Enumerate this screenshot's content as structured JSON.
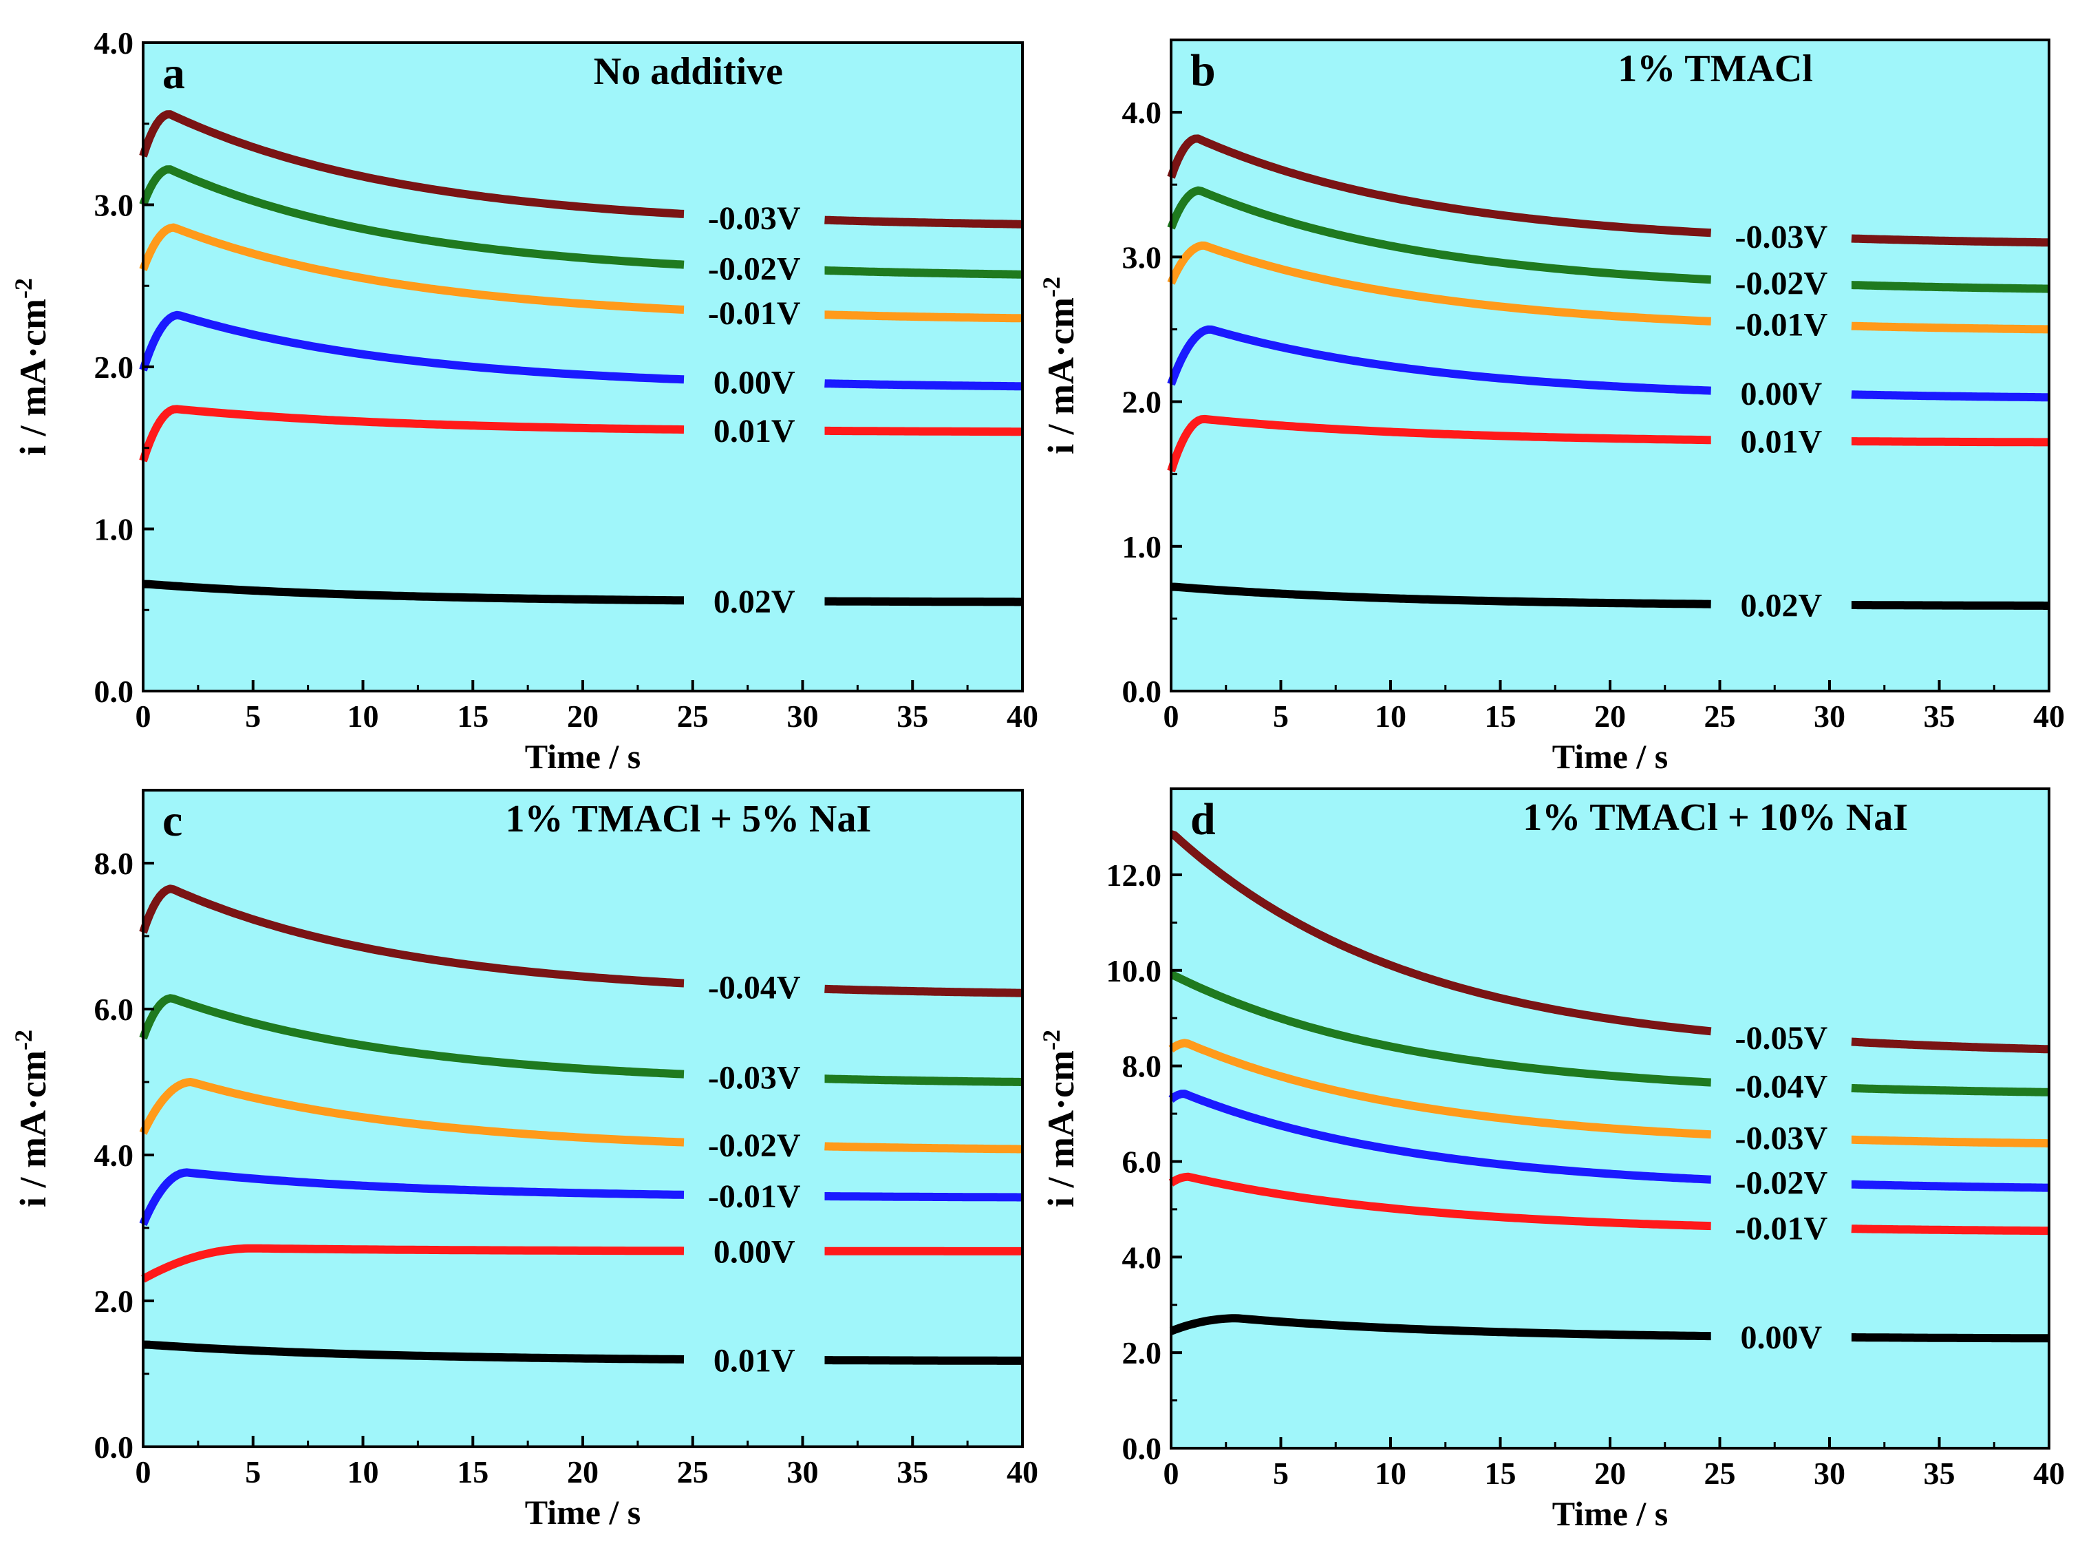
{
  "chart_data": [
    {
      "type": "line",
      "panel": "a",
      "title": "No additive",
      "xlabel": "Time / s",
      "ylabel": "i / mA·cm",
      "ylabel_sup": "-2",
      "xlim": [
        0,
        40
      ],
      "ylim": [
        0,
        4
      ],
      "xticks": [
        "0",
        "5",
        "10",
        "15",
        "20",
        "25",
        "30",
        "35",
        "40"
      ],
      "yticks": [
        "0.0",
        "1.0",
        "2.0",
        "3.0",
        "4.0"
      ],
      "background": "#a0f6fa",
      "series": [
        {
          "name": "-0.03V",
          "color": "#7a1414",
          "start": 3.3,
          "peak": 3.56,
          "tp": 1.2,
          "end": 2.88
        },
        {
          "name": "-0.02V",
          "color": "#1f7a1f",
          "start": 3.0,
          "peak": 3.22,
          "tp": 1.2,
          "end": 2.57
        },
        {
          "name": "-0.01V",
          "color": "#ff9a1a",
          "start": 2.6,
          "peak": 2.86,
          "tp": 1.4,
          "end": 2.3
        },
        {
          "name": "0.00V",
          "color": "#1a1aff",
          "start": 1.98,
          "peak": 2.32,
          "tp": 1.6,
          "end": 1.88
        },
        {
          "name": "0.01V",
          "color": "#ff1a1a",
          "start": 1.42,
          "peak": 1.74,
          "tp": 1.5,
          "end": 1.6
        },
        {
          "name": "0.02V",
          "color": "#000000",
          "start": 0.66,
          "peak": 0.66,
          "tp": 0.2,
          "end": 0.55
        }
      ]
    },
    {
      "type": "line",
      "panel": "b",
      "title": "1% TMACl",
      "xlabel": "Time / s",
      "ylabel": "i / mA·cm",
      "ylabel_sup": "-2",
      "xlim": [
        0,
        40
      ],
      "ylim": [
        0,
        4.5
      ],
      "xticks": [
        "0",
        "5",
        "10",
        "15",
        "20",
        "25",
        "30",
        "35",
        "40"
      ],
      "yticks": [
        "0.0",
        "1.0",
        "2.0",
        "3.0",
        "4.0"
      ],
      "background": "#a0f6fa",
      "series": [
        {
          "name": "-0.03V",
          "color": "#7a1414",
          "start": 3.55,
          "peak": 3.82,
          "tp": 1.2,
          "end": 3.1
        },
        {
          "name": "-0.02V",
          "color": "#1f7a1f",
          "start": 3.2,
          "peak": 3.46,
          "tp": 1.3,
          "end": 2.78
        },
        {
          "name": "-0.01V",
          "color": "#ff9a1a",
          "start": 2.82,
          "peak": 3.08,
          "tp": 1.5,
          "end": 2.5
        },
        {
          "name": "0.00V",
          "color": "#1a1aff",
          "start": 2.12,
          "peak": 2.5,
          "tp": 1.8,
          "end": 2.03
        },
        {
          "name": "0.01V",
          "color": "#ff1a1a",
          "start": 1.52,
          "peak": 1.88,
          "tp": 1.5,
          "end": 1.72
        },
        {
          "name": "0.02V",
          "color": "#000000",
          "start": 0.72,
          "peak": 0.72,
          "tp": 0.2,
          "end": 0.59
        }
      ]
    },
    {
      "type": "line",
      "panel": "c",
      "title": "1% TMACl + 5% NaI",
      "xlabel": "Time / s",
      "ylabel": "i / mA·cm",
      "ylabel_sup": "-2",
      "xlim": [
        0,
        40
      ],
      "ylim": [
        0,
        9
      ],
      "xticks": [
        "0",
        "5",
        "10",
        "15",
        "20",
        "25",
        "30",
        "35",
        "40"
      ],
      "yticks": [
        "0.0",
        "2.0",
        "4.0",
        "6.0",
        "8.0"
      ],
      "background": "#a0f6fa",
      "series": [
        {
          "name": "-0.04V",
          "color": "#7a1414",
          "start": 7.05,
          "peak": 7.65,
          "tp": 1.3,
          "end": 6.22
        },
        {
          "name": "-0.03V",
          "color": "#1f7a1f",
          "start": 5.6,
          "peak": 6.15,
          "tp": 1.3,
          "end": 5.0
        },
        {
          "name": "-0.02V",
          "color": "#ff9a1a",
          "start": 4.3,
          "peak": 5.0,
          "tp": 2.2,
          "end": 4.08
        },
        {
          "name": "-0.01V",
          "color": "#1a1aff",
          "start": 3.05,
          "peak": 3.76,
          "tp": 2.0,
          "end": 3.42
        },
        {
          "name": "0.00V",
          "color": "#ff1a1a",
          "start": 2.3,
          "peak": 2.72,
          "tp": 5.0,
          "end": 2.68
        },
        {
          "name": "0.01V",
          "color": "#000000",
          "start": 1.4,
          "peak": 1.4,
          "tp": 0.2,
          "end": 1.18
        }
      ]
    },
    {
      "type": "line",
      "panel": "d",
      "title": "1% TMACl + 10% NaI",
      "xlabel": "Time / s",
      "ylabel": "i / mA·cm",
      "ylabel_sup": "-2",
      "xlim": [
        0,
        40
      ],
      "ylim": [
        0,
        13.8
      ],
      "xticks": [
        "0",
        "5",
        "10",
        "15",
        "20",
        "25",
        "30",
        "35",
        "40"
      ],
      "yticks": [
        "0.0",
        "2.0",
        "4.0",
        "6.0",
        "8.0",
        "10.0",
        "12.0"
      ],
      "background": "#a0f6fa",
      "series": [
        {
          "name": "-0.05V",
          "color": "#7a1414",
          "start": 12.85,
          "peak": 12.85,
          "tp": 0.1,
          "end": 8.35
        },
        {
          "name": "-0.04V",
          "color": "#1f7a1f",
          "start": 9.9,
          "peak": 9.9,
          "tp": 0.1,
          "end": 7.45
        },
        {
          "name": "-0.03V",
          "color": "#ff9a1a",
          "start": 8.35,
          "peak": 8.48,
          "tp": 0.7,
          "end": 6.38
        },
        {
          "name": "-0.02V",
          "color": "#1a1aff",
          "start": 7.3,
          "peak": 7.42,
          "tp": 0.6,
          "end": 5.45
        },
        {
          "name": "-0.01V",
          "color": "#ff1a1a",
          "start": 5.55,
          "peak": 5.68,
          "tp": 0.8,
          "end": 4.55
        },
        {
          "name": "0.00V",
          "color": "#000000",
          "start": 2.45,
          "peak": 2.72,
          "tp": 3.0,
          "end": 2.3
        }
      ]
    }
  ]
}
